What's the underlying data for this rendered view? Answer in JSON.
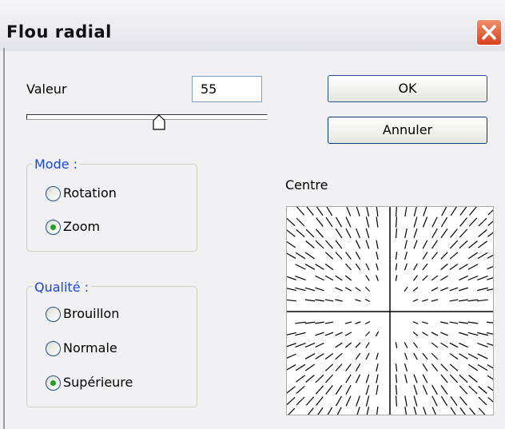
{
  "window": {
    "title": "Flou radial"
  },
  "field": {
    "label": "Valeur",
    "value": "55"
  },
  "buttons": [
    "OK",
    "Annuler"
  ],
  "mode": {
    "legend": "Mode :",
    "options": [
      {
        "label": "Rotation",
        "checked": false
      },
      {
        "label": "Zoom",
        "checked": true
      }
    ]
  },
  "quality": {
    "legend": "Qualité :",
    "options": [
      {
        "label": "Brouillon",
        "checked": false
      },
      {
        "label": "Normale",
        "checked": false
      },
      {
        "label": "Supérieure",
        "checked": true
      }
    ]
  },
  "preview": {
    "label": "Centre"
  }
}
